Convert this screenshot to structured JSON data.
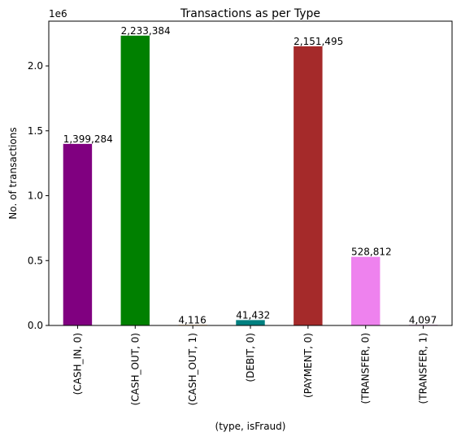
{
  "chart_data": {
    "type": "bar",
    "title": "Transactions as per Type",
    "xlabel": "(type, isFraud)",
    "ylabel": "No. of transactions",
    "y_offset_label": "1e6",
    "categories": [
      "(CASH_IN, 0)",
      "(CASH_OUT, 0)",
      "(CASH_OUT, 1)",
      "(DEBIT, 0)",
      "(PAYMENT, 0)",
      "(TRANSFER, 0)",
      "(TRANSFER, 1)"
    ],
    "values": [
      1399284,
      2233384,
      4116,
      41432,
      2151495,
      528812,
      4097
    ],
    "data_labels": [
      "1,399,284",
      "2,233,384",
      "4,116",
      "41,432",
      "2,151,495",
      "528,812",
      "4,097"
    ],
    "colors": [
      "#800080",
      "#008000",
      "#ff8c00",
      "#008080",
      "#a52a2a",
      "#ee82ee",
      "#800080"
    ],
    "yticks": [
      0,
      500000,
      1000000,
      1500000,
      2000000
    ],
    "ytick_labels": [
      "0.0",
      "0.5",
      "1.0",
      "1.5",
      "2.0"
    ],
    "ylim": [
      0,
      2345053
    ],
    "grid": false,
    "legend": "none"
  }
}
